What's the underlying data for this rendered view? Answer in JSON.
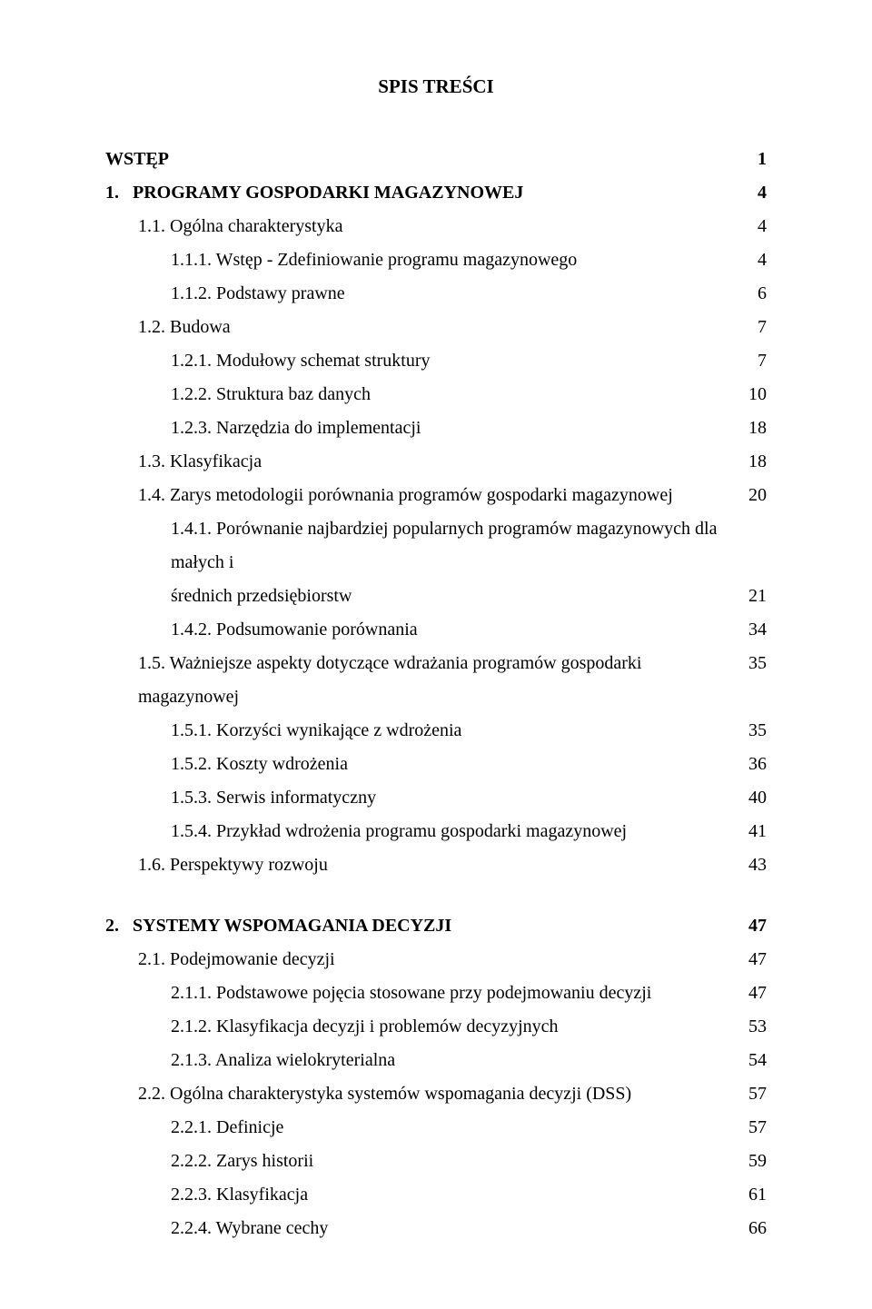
{
  "title": "SPIS TREŚCI",
  "entries": [
    {
      "label": "WSTĘP",
      "page": "1",
      "indent": 0,
      "bold": true,
      "num": ""
    },
    {
      "label": "PROGRAMY GOSPODARKI MAGAZYNOWEJ",
      "page": "4",
      "indent": 0,
      "bold": true,
      "num": "1."
    },
    {
      "label": "1.1. Ogólna charakterystyka",
      "page": "4",
      "indent": 1,
      "bold": false
    },
    {
      "label": "1.1.1. Wstęp - Zdefiniowanie programu magazynowego",
      "page": "4",
      "indent": 2,
      "bold": false
    },
    {
      "label": "1.1.2. Podstawy prawne",
      "page": "6",
      "indent": 2,
      "bold": false
    },
    {
      "label": "1.2. Budowa",
      "page": "7",
      "indent": 1,
      "bold": false
    },
    {
      "label": "1.2.1. Modułowy schemat struktury",
      "page": "7",
      "indent": 2,
      "bold": false
    },
    {
      "label": "1.2.2. Struktura baz danych",
      "page": "10",
      "indent": 2,
      "bold": false
    },
    {
      "label": "1.2.3. Narzędzia do implementacji",
      "page": "18",
      "indent": 2,
      "bold": false
    },
    {
      "label": "1.3. Klasyfikacja",
      "page": "18",
      "indent": 1,
      "bold": false
    },
    {
      "label": "1.4. Zarys metodologii porównania programów gospodarki magazynowej",
      "page": "20",
      "indent": 1,
      "bold": false
    },
    {
      "label": "1.4.1. Porównanie najbardziej popularnych programów magazynowych dla małych i",
      "page": "",
      "indent": 2,
      "bold": false,
      "noPage": true
    },
    {
      "label": "średnich przedsiębiorstw",
      "page": "21",
      "indent": 2,
      "bold": false,
      "cont": true
    },
    {
      "label": "1.4.2. Podsumowanie porównania",
      "page": "34",
      "indent": 2,
      "bold": false
    },
    {
      "label": "1.5. Ważniejsze aspekty dotyczące wdrażania programów gospodarki magazynowej",
      "page": "35",
      "indent": 1,
      "bold": false
    },
    {
      "label": "1.5.1. Korzyści wynikające z wdrożenia",
      "page": "35",
      "indent": 2,
      "bold": false
    },
    {
      "label": "1.5.2. Koszty wdrożenia",
      "page": "36",
      "indent": 2,
      "bold": false
    },
    {
      "label": "1.5.3. Serwis informatyczny",
      "page": "40",
      "indent": 2,
      "bold": false
    },
    {
      "label": "1.5.4. Przykład wdrożenia programu gospodarki magazynowej",
      "page": "41",
      "indent": 2,
      "bold": false
    },
    {
      "label": "1.6. Perspektywy rozwoju",
      "page": "43",
      "indent": 1,
      "bold": false
    },
    {
      "gap": "med"
    },
    {
      "label": "SYSTEMY WSPOMAGANIA DECYZJI",
      "page": "47",
      "indent": 0,
      "bold": true,
      "num": "2."
    },
    {
      "label": "2.1. Podejmowanie decyzji",
      "page": "47",
      "indent": 1,
      "bold": false
    },
    {
      "label": "2.1.1. Podstawowe pojęcia stosowane przy podejmowaniu decyzji",
      "page": "47",
      "indent": 2,
      "bold": false
    },
    {
      "label": "2.1.2. Klasyfikacja decyzji i problemów decyzyjnych",
      "page": "53",
      "indent": 2,
      "bold": false
    },
    {
      "label": "2.1.3. Analiza wielokryterialna",
      "page": "54",
      "indent": 2,
      "bold": false
    },
    {
      "label": "2.2. Ogólna charakterystyka systemów wspomagania decyzji (DSS)",
      "page": "57",
      "indent": 1,
      "bold": false
    },
    {
      "label": "2.2.1. Definicje",
      "page": "57",
      "indent": 2,
      "bold": false
    },
    {
      "label": "2.2.2. Zarys historii",
      "page": "59",
      "indent": 2,
      "bold": false
    },
    {
      "label": "2.2.3. Klasyfikacja",
      "page": "61",
      "indent": 2,
      "bold": false
    },
    {
      "label": "2.2.4. Wybrane cechy",
      "page": "66",
      "indent": 2,
      "bold": false
    }
  ]
}
